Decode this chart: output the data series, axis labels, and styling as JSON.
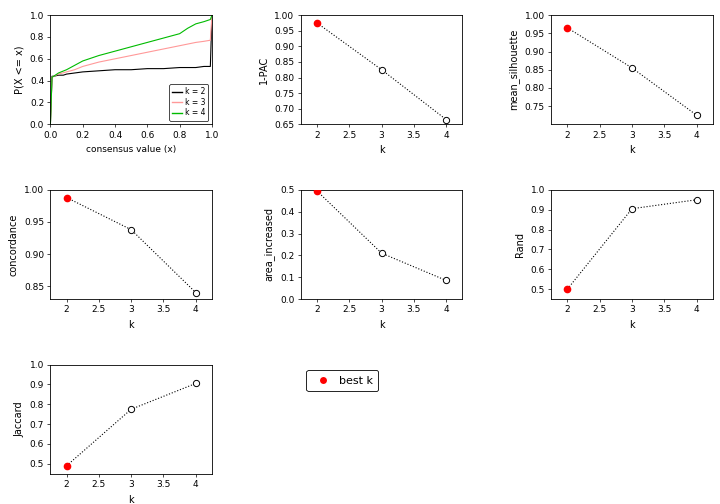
{
  "ecdf": {
    "k2_x": [
      0.0,
      0.01,
      0.02,
      0.05,
      0.08,
      0.1,
      0.15,
      0.2,
      0.3,
      0.4,
      0.5,
      0.6,
      0.7,
      0.8,
      0.9,
      0.95,
      0.99,
      1.0
    ],
    "k2_y": [
      0.0,
      0.44,
      0.44,
      0.45,
      0.45,
      0.46,
      0.47,
      0.48,
      0.49,
      0.5,
      0.5,
      0.51,
      0.51,
      0.52,
      0.52,
      0.53,
      0.53,
      1.0
    ],
    "k3_x": [
      0.0,
      0.01,
      0.02,
      0.05,
      0.1,
      0.15,
      0.2,
      0.3,
      0.4,
      0.5,
      0.6,
      0.7,
      0.8,
      0.9,
      0.95,
      0.99,
      1.0
    ],
    "k3_y": [
      0.0,
      0.43,
      0.44,
      0.46,
      0.48,
      0.5,
      0.53,
      0.57,
      0.6,
      0.63,
      0.66,
      0.69,
      0.72,
      0.75,
      0.76,
      0.77,
      1.0
    ],
    "k4_x": [
      0.0,
      0.01,
      0.02,
      0.05,
      0.1,
      0.15,
      0.2,
      0.3,
      0.4,
      0.5,
      0.6,
      0.7,
      0.8,
      0.85,
      0.9,
      0.95,
      0.99,
      1.0
    ],
    "k4_y": [
      0.0,
      0.43,
      0.44,
      0.47,
      0.5,
      0.54,
      0.58,
      0.63,
      0.67,
      0.71,
      0.75,
      0.79,
      0.83,
      0.88,
      0.92,
      0.94,
      0.96,
      1.0
    ]
  },
  "pac": {
    "k": [
      2,
      3,
      4
    ],
    "y": [
      0.975,
      0.825,
      0.665
    ]
  },
  "silhouette": {
    "k": [
      2,
      3,
      4
    ],
    "y": [
      0.965,
      0.855,
      0.725
    ]
  },
  "concordance": {
    "k": [
      2,
      3,
      4
    ],
    "y": [
      0.988,
      0.938,
      0.84
    ]
  },
  "area_increased": {
    "k": [
      2,
      3,
      4
    ],
    "y": [
      0.495,
      0.21,
      0.085
    ]
  },
  "rand": {
    "k": [
      2,
      3,
      4
    ],
    "y": [
      0.5,
      0.905,
      0.95
    ]
  },
  "jaccard": {
    "k": [
      2,
      3,
      4
    ],
    "y": [
      0.49,
      0.775,
      0.905
    ]
  },
  "ylims": {
    "pac": [
      0.65,
      1.0
    ],
    "silhouette": [
      0.7,
      1.0
    ],
    "concordance": [
      0.83,
      1.0
    ],
    "area_increased": [
      0.0,
      0.5
    ],
    "rand": [
      0.45,
      1.0
    ],
    "jaccard": [
      0.45,
      1.0
    ]
  },
  "yticks": {
    "pac": [
      0.65,
      0.7,
      0.75,
      0.8,
      0.85,
      0.9,
      0.95,
      1.0
    ],
    "silhouette": [
      0.75,
      0.8,
      0.85,
      0.9,
      0.95,
      1.0
    ],
    "concordance": [
      0.85,
      0.9,
      0.95,
      1.0
    ],
    "area_increased": [
      0.0,
      0.1,
      0.2,
      0.3,
      0.4,
      0.5
    ],
    "rand": [
      0.5,
      0.6,
      0.7,
      0.8,
      0.9,
      1.0
    ],
    "jaccard": [
      0.5,
      0.6,
      0.7,
      0.8,
      0.9,
      1.0
    ]
  },
  "colors": {
    "k2": "#000000",
    "k3": "#FF9999",
    "k4": "#00BB00",
    "best_dot": "#FF0000",
    "open_dot": "#000000",
    "line": "#000000"
  },
  "best_k": 2,
  "background": "#FFFFFF"
}
